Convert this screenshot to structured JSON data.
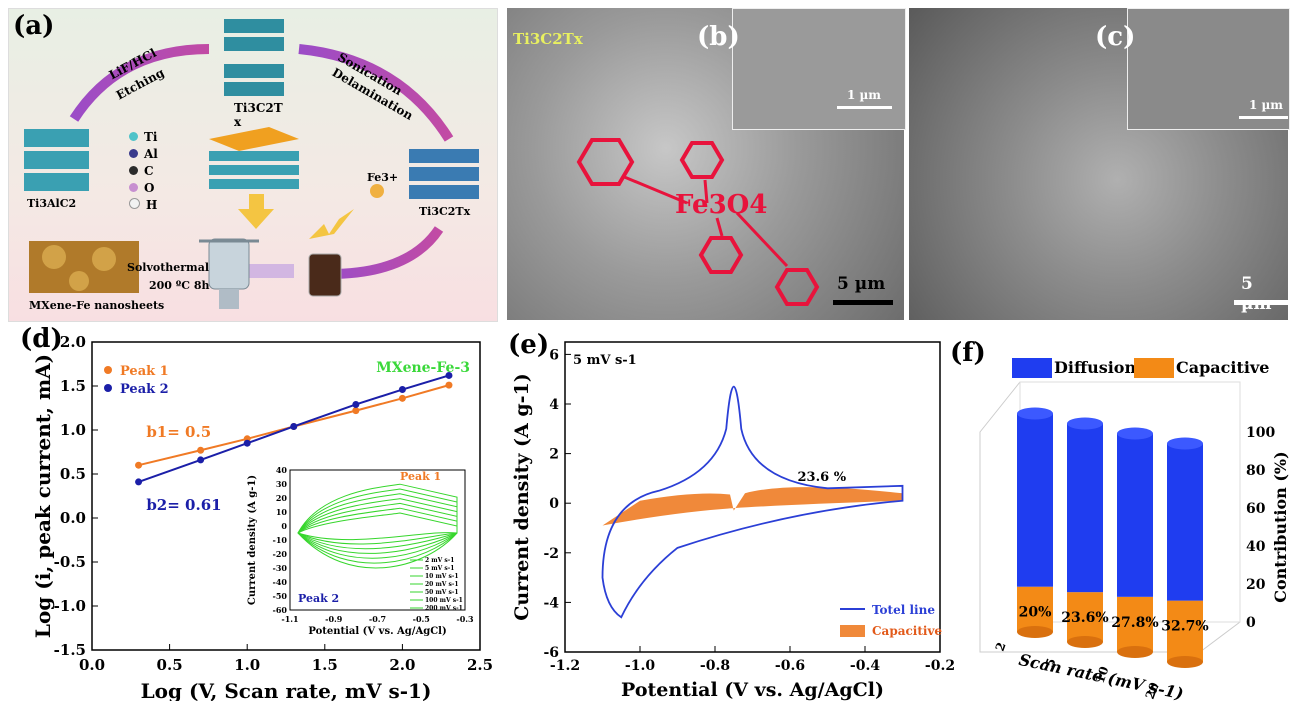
{
  "panel_a": {
    "label": "(a)",
    "arrow_etching_line1": "LiF/HCl",
    "arrow_etching_line2": "Etching",
    "arrow_sonication_line1": "Sonication",
    "arrow_sonication_line2": "Delamination",
    "ti3c2tx_top": "Ti3C2T",
    "ti3c2tx_top_sub": "x",
    "ti3alc2": "Ti3AlC2",
    "ti3c2tx_right": "Ti3C2Tx",
    "legend": [
      "Ti",
      "Al",
      "C",
      "O",
      "H"
    ],
    "legend_colors": [
      "#4fc3c9",
      "#3a3a8c",
      "#2b2b2b",
      "#c78fd0",
      "#f2f2f2"
    ],
    "fe": "Fe3+",
    "solvothermal": "Solvothermal",
    "temp": "200 ºC 8h",
    "product": "MXene-Fe nanosheets"
  },
  "panel_b": {
    "label": "(b)",
    "tag": "Ti3C2Tx",
    "fe3o4": "Fe3O4",
    "inset_scale": "1 µm",
    "scale": "5 µm"
  },
  "panel_c": {
    "label": "(c)",
    "inset_scale": "1 µm",
    "scale": "5 µm"
  },
  "chart_data": [
    {
      "panel": "(d)",
      "type": "scatter",
      "xlabel": "Log (V, Scan rate, mV s-1)",
      "ylabel": "Log (i, peak current, mA)",
      "xlim": [
        0.0,
        2.5
      ],
      "ylim": [
        -1.5,
        2.0
      ],
      "xticks": [
        "0.0",
        "0.5",
        "1.0",
        "1.5",
        "2.0",
        "2.5"
      ],
      "yticks": [
        "-1.5",
        "-1.0",
        "-0.5",
        "0.0",
        "0.5",
        "1.0",
        "1.5",
        "2.0"
      ],
      "annotation": "MXene-Fe-3",
      "series": [
        {
          "name": "Peak 1",
          "color": "#f07a25",
          "x": [
            0.3,
            0.7,
            1.0,
            1.3,
            1.7,
            2.0,
            2.3
          ],
          "y": [
            0.6,
            0.77,
            0.9,
            1.04,
            1.22,
            1.36,
            1.51
          ],
          "fit_label": "b1= 0.5"
        },
        {
          "name": "Peak 2",
          "color": "#1b1fa8",
          "x": [
            0.3,
            0.7,
            1.0,
            1.3,
            1.7,
            2.0,
            2.3
          ],
          "y": [
            0.41,
            0.66,
            0.85,
            1.04,
            1.29,
            1.46,
            1.62
          ],
          "fit_label": "b2= 0.61"
        }
      ],
      "inset": {
        "xlabel": "Potential (V vs. Ag/AgCl)",
        "ylabel": "Current density (A g-1)",
        "xticks": [
          "-1.1",
          "-0.9",
          "-0.7",
          "-0.5",
          "-0.3"
        ],
        "yticks": [
          "40",
          "30",
          "20",
          "10",
          "0",
          "-10",
          "-20",
          "-30",
          "-40",
          "-50",
          "-60"
        ],
        "peak1": "Peak 1",
        "peak2": "Peak 2",
        "legend": [
          "2 mV s-1",
          "5 mV s-1",
          "10 mV s-1",
          "20 mV s-1",
          "50 mV s-1",
          "100 mV s-1",
          "200 mV s-1"
        ]
      }
    },
    {
      "panel": "(e)",
      "type": "line",
      "xlabel": "Potential (V vs. Ag/AgCl)",
      "ylabel": "Current density (A g-1)",
      "xlim": [
        -1.2,
        -0.2
      ],
      "ylim": [
        -6,
        6.5
      ],
      "xticks": [
        "-1.2",
        "-1.0",
        "-0.8",
        "-0.6",
        "-0.4",
        "-0.2"
      ],
      "yticks": [
        "6",
        "4",
        "2",
        "0",
        "-2",
        "-4",
        "-6"
      ],
      "annotation": "5 mV s-1",
      "capacitive_percent": "23.6 %",
      "legend": [
        "Totel line",
        "Capacitive"
      ],
      "colors": {
        "total": "#2b3fd6",
        "capacitive": "#f0893a"
      }
    },
    {
      "panel": "(f)",
      "type": "bar",
      "categories": [
        "2",
        "5",
        "10",
        "20"
      ],
      "xlabel": "Scan rate (mV s-1)",
      "ylabel": "Contribution (%)",
      "yticks": [
        "100",
        "80",
        "60",
        "40",
        "20",
        "0"
      ],
      "legend": [
        "Diffusion",
        "Capacitive"
      ],
      "series": [
        {
          "name": "Capacitive",
          "values": [
            20,
            23.6,
            27.8,
            32.7
          ]
        },
        {
          "name": "Diffusion",
          "values": [
            80,
            76.4,
            72.2,
            67.3
          ]
        }
      ],
      "labels": [
        "20%",
        "23.6%",
        "27.8%",
        "32.7%"
      ],
      "colors": {
        "diffusion": "#1f3df0",
        "capacitive": "#f38a16"
      }
    }
  ]
}
